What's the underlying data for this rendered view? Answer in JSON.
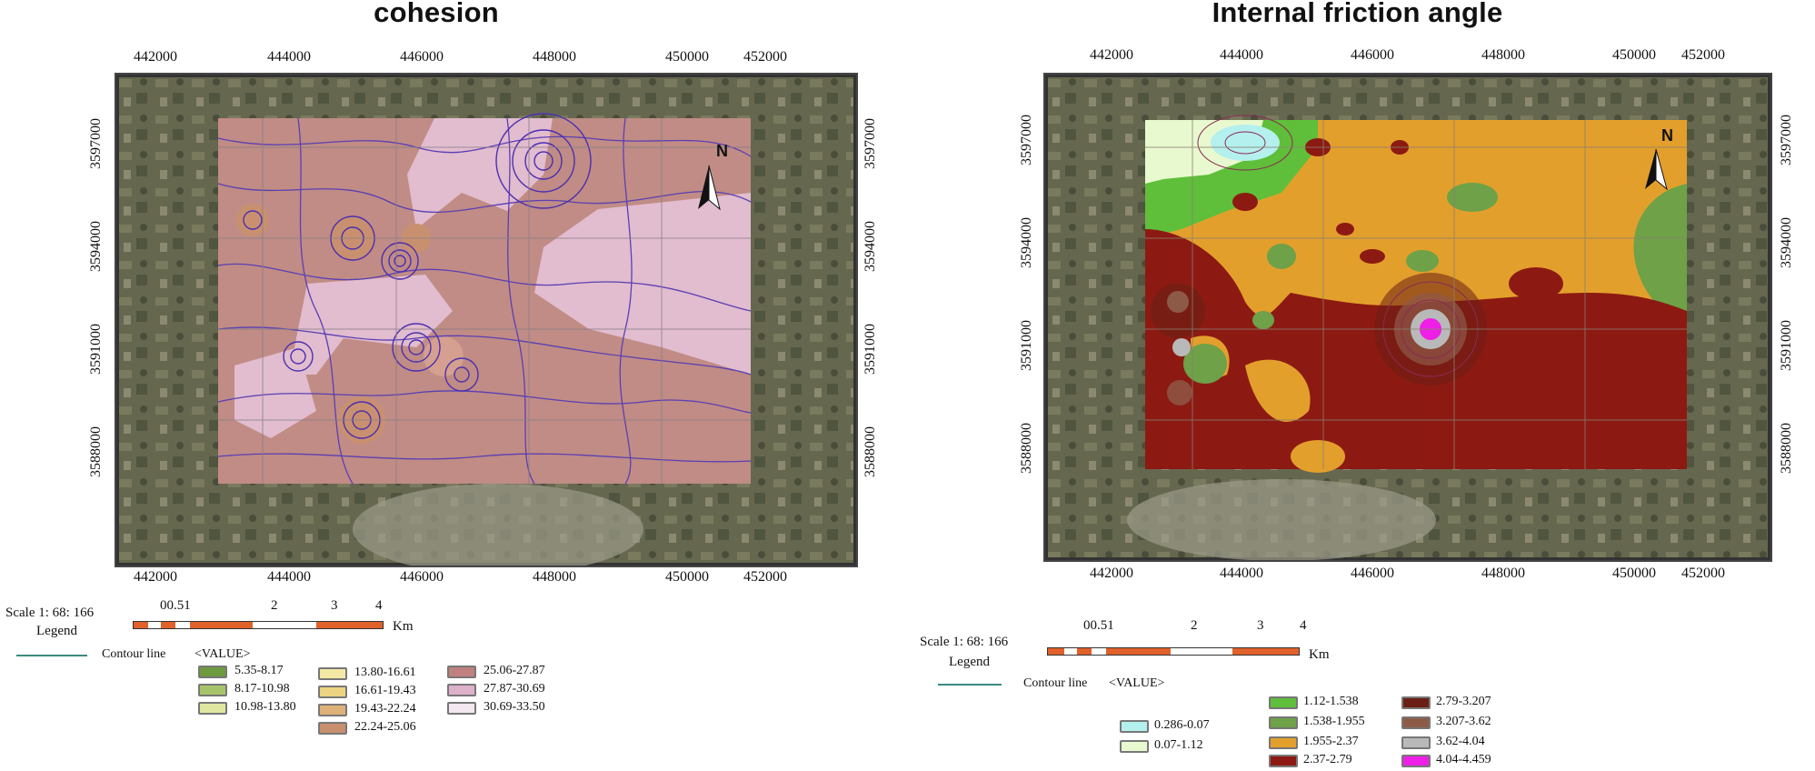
{
  "panels": [
    {
      "title": "cohesion",
      "x_ticks": [
        "442000",
        "444000",
        "446000",
        "448000",
        "450000",
        "452000"
      ],
      "y_ticks": [
        "3597000",
        "3594000",
        "3591000",
        "3588000"
      ],
      "north_label": "N",
      "scale": {
        "label": "Scale 1: 68: 166",
        "numbers": [
          "00.51",
          "2",
          "3",
          "4"
        ],
        "unit": "Km",
        "legend_label": "Legend"
      },
      "contour_label": "Contour line",
      "value_label": "<VALUE>",
      "legend": [
        {
          "label": "5.35-8.17",
          "color": "#6e9a3f"
        },
        {
          "label": "8.17-10.98",
          "color": "#a8c46a"
        },
        {
          "label": "10.98-13.80",
          "color": "#dfe7a0"
        },
        {
          "label": "13.80-16.61",
          "color": "#f3e9a5"
        },
        {
          "label": "16.61-19.43",
          "color": "#ecd482"
        },
        {
          "label": "19.43-22.24",
          "color": "#deb179"
        },
        {
          "label": "22.24-25.06",
          "color": "#c9906f"
        },
        {
          "label": "25.06-27.87",
          "color": "#c08080"
        },
        {
          "label": "27.87-30.69",
          "color": "#ddb1c9"
        },
        {
          "label": "30.69-33.50",
          "color": "#f3e8f0"
        }
      ]
    },
    {
      "title": "Internal friction angle",
      "x_ticks": [
        "442000",
        "444000",
        "446000",
        "448000",
        "450000",
        "452000"
      ],
      "y_ticks": [
        "3597000",
        "3594000",
        "3591000",
        "3588000"
      ],
      "north_label": "N",
      "scale": {
        "label": "Scale 1: 68: 166",
        "numbers": [
          "00.51",
          "2",
          "3",
          "4"
        ],
        "unit": "Km",
        "legend_label": "Legend"
      },
      "contour_label": "Contour line",
      "value_label": "<VALUE>",
      "legend": [
        {
          "label": "0.286-0.07",
          "color": "#b4f0ee"
        },
        {
          "label": "0.07-1.12",
          "color": "#e8f9cf"
        },
        {
          "label": "1.12-1.538",
          "color": "#5fbf3a"
        },
        {
          "label": "1.538-1.955",
          "color": "#6ea148"
        },
        {
          "label": "1.955-2.37",
          "color": "#e39f2c"
        },
        {
          "label": "2.37-2.79",
          "color": "#8c1a12"
        },
        {
          "label": "2.79-3.207",
          "color": "#6b1f14"
        },
        {
          "label": "3.207-3.62",
          "color": "#8e5a48"
        },
        {
          "label": "3.62-4.04",
          "color": "#b9b9b9"
        },
        {
          "label": "4.04-4.459",
          "color": "#ee1fe6"
        }
      ]
    }
  ]
}
